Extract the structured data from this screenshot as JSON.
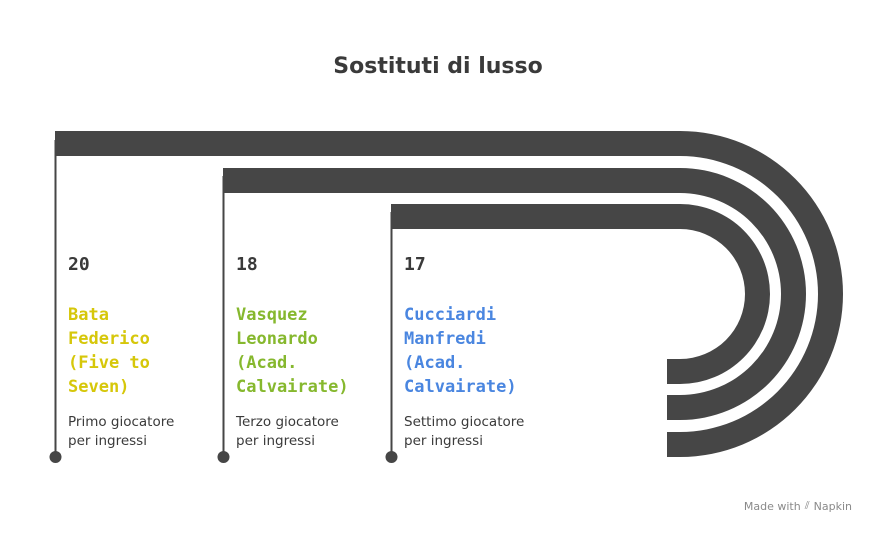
{
  "title": "Sostituti di lusso",
  "colors": {
    "track": "#464646",
    "item1": "#d6c70a",
    "item2": "#86b82e",
    "item3": "#4a86e0"
  },
  "items": [
    {
      "number": "20",
      "name": "Bata\nFederico\n(Five to\nSeven)",
      "description": "Primo giocatore\nper ingressi",
      "color_key": "item1"
    },
    {
      "number": "18",
      "name": "Vasquez\nLeonardo\n(Acad.\nCalvairate)",
      "description": "Terzo giocatore\nper ingressi",
      "color_key": "item2"
    },
    {
      "number": "17",
      "name": "Cucciardi\nManfredi\n(Acad.\nCalvairate)",
      "description": "Settimo giocatore\nper ingressi",
      "color_key": "item3"
    }
  ],
  "footer": {
    "text": "Made with",
    "brand": "Napkin",
    "icon": "napkin-logo-icon"
  }
}
